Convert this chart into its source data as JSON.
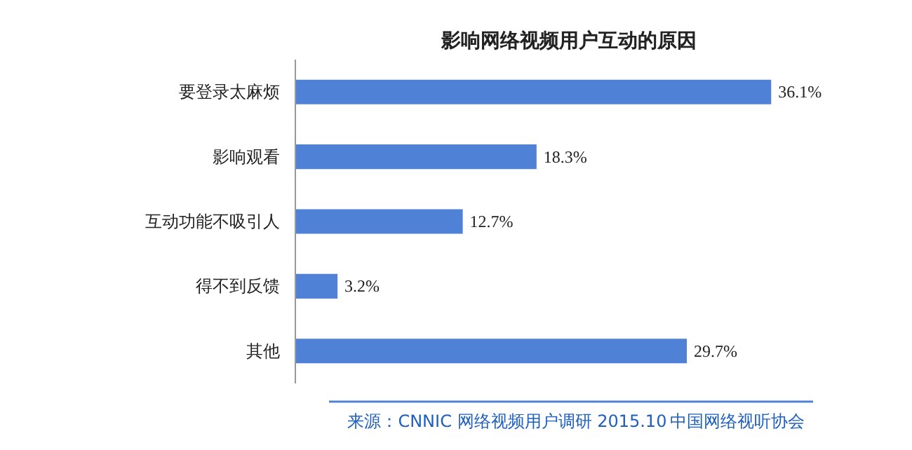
{
  "chart_data": {
    "type": "bar",
    "orientation": "horizontal",
    "title": "影响网络视频用户互动的原因",
    "categories": [
      "要登录太麻烦",
      "影响观看",
      "互动功能不吸引人",
      "得不到反馈",
      "其他"
    ],
    "values": [
      36.1,
      18.3,
      12.7,
      3.2,
      29.7
    ],
    "value_labels": [
      "36.1%",
      "18.3%",
      "12.7%",
      "3.2%",
      "29.7%"
    ],
    "color": "#4f81d6",
    "grid": false,
    "annotations": [
      "来源：CNNIC 网络视频用户调研   2015.10",
      "中国网络视听协会"
    ]
  }
}
